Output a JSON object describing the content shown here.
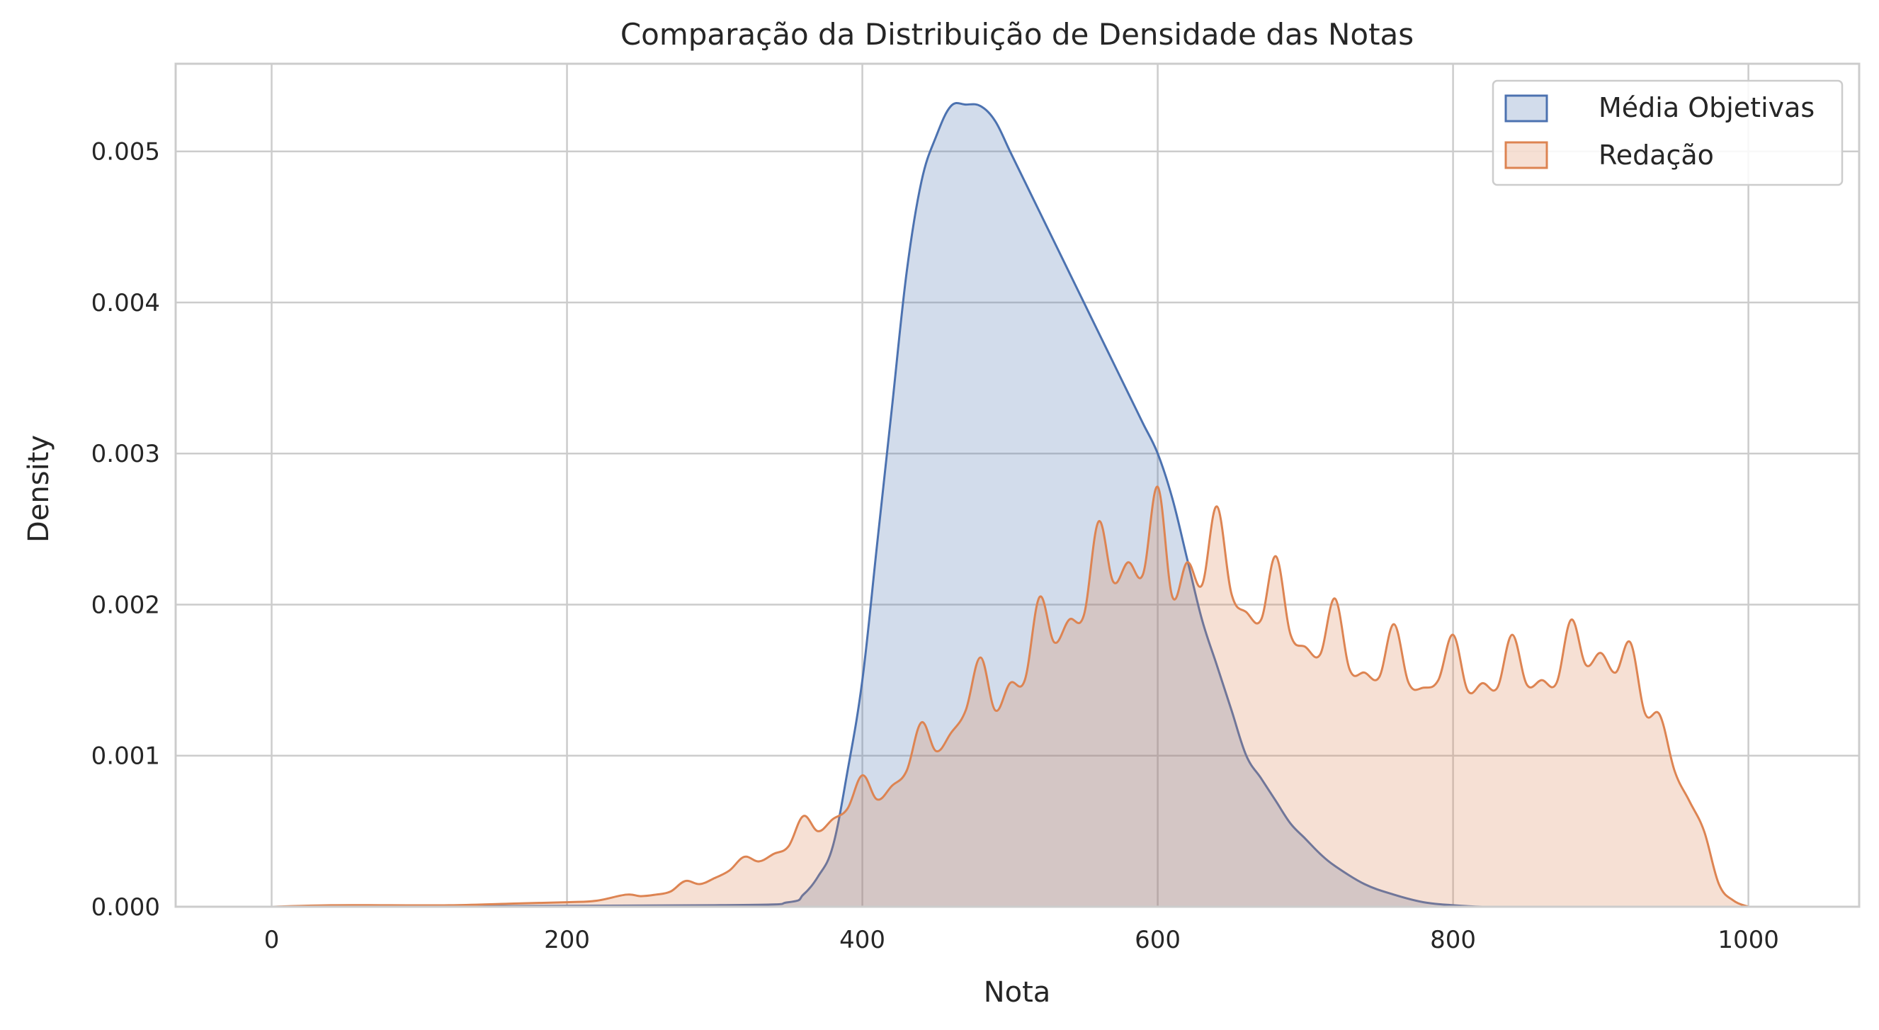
{
  "chart_data": {
    "type": "area",
    "title": "Comparação da Distribuição de Densidade das Notas",
    "xlabel": "Nota",
    "ylabel": "Density",
    "xlim": [
      -65,
      1075
    ],
    "ylim": [
      0,
      0.00558
    ],
    "x_ticks": [
      0,
      200,
      400,
      600,
      800,
      1000
    ],
    "x_tick_labels": [
      "0",
      "200",
      "400",
      "600",
      "800",
      "1000"
    ],
    "y_ticks": [
      0,
      0.001,
      0.002,
      0.003,
      0.004,
      0.005
    ],
    "y_tick_labels": [
      "0.000",
      "0.001",
      "0.002",
      "0.003",
      "0.004",
      "0.005"
    ],
    "grid": true,
    "legend_position": "top-right",
    "series": [
      {
        "name": "Média Objetivas",
        "color": "#4c72b0",
        "x": [
          0,
          300,
          350,
          360,
          370,
          380,
          390,
          400,
          410,
          420,
          430,
          440,
          450,
          460,
          470,
          480,
          490,
          500,
          510,
          520,
          530,
          540,
          550,
          560,
          570,
          580,
          590,
          600,
          610,
          620,
          630,
          640,
          650,
          660,
          670,
          680,
          690,
          700,
          710,
          720,
          740,
          760,
          780,
          800,
          820,
          850,
          900,
          1000
        ],
        "y": [
          0,
          1e-05,
          3e-05,
          8e-05,
          0.0002,
          0.0004,
          0.0009,
          0.0015,
          0.0024,
          0.0033,
          0.0042,
          0.0048,
          0.0051,
          0.0053,
          0.00531,
          0.0053,
          0.0052,
          0.005,
          0.0048,
          0.0046,
          0.0044,
          0.0042,
          0.004,
          0.0038,
          0.0036,
          0.0034,
          0.0032,
          0.003,
          0.0027,
          0.0023,
          0.0019,
          0.0016,
          0.0013,
          0.001,
          0.00085,
          0.0007,
          0.00055,
          0.00045,
          0.00035,
          0.00027,
          0.00015,
          8e-05,
          3e-05,
          1e-05,
          0,
          0,
          0,
          0
        ]
      },
      {
        "name": "Redação",
        "color": "#dd8452",
        "x": [
          0,
          40,
          80,
          120,
          160,
          200,
          220,
          240,
          250,
          260,
          270,
          280,
          290,
          300,
          310,
          320,
          330,
          340,
          350,
          360,
          370,
          380,
          390,
          400,
          410,
          420,
          430,
          440,
          450,
          460,
          470,
          480,
          490,
          500,
          510,
          520,
          530,
          540,
          550,
          560,
          570,
          580,
          590,
          600,
          610,
          620,
          630,
          640,
          650,
          660,
          670,
          680,
          690,
          700,
          710,
          720,
          730,
          740,
          750,
          760,
          770,
          780,
          790,
          800,
          810,
          820,
          830,
          840,
          850,
          860,
          870,
          880,
          890,
          900,
          910,
          920,
          930,
          940,
          950,
          960,
          970,
          980,
          990,
          1000
        ],
        "y": [
          0,
          1e-05,
          1e-05,
          1e-05,
          2e-05,
          3e-05,
          4e-05,
          8e-05,
          7e-05,
          8e-05,
          0.0001,
          0.00017,
          0.00015,
          0.00019,
          0.00024,
          0.00033,
          0.0003,
          0.00035,
          0.0004,
          0.0006,
          0.0005,
          0.00058,
          0.00065,
          0.00087,
          0.00071,
          0.0008,
          0.0009,
          0.00122,
          0.00103,
          0.00115,
          0.0013,
          0.00165,
          0.0013,
          0.00148,
          0.0015,
          0.00205,
          0.00175,
          0.0019,
          0.00193,
          0.00255,
          0.00215,
          0.00228,
          0.0022,
          0.00278,
          0.00205,
          0.00228,
          0.00213,
          0.00265,
          0.00207,
          0.00195,
          0.0019,
          0.00232,
          0.0018,
          0.00172,
          0.00167,
          0.00204,
          0.00157,
          0.00155,
          0.00152,
          0.00187,
          0.00148,
          0.00145,
          0.0015,
          0.0018,
          0.00143,
          0.00148,
          0.00145,
          0.0018,
          0.00147,
          0.0015,
          0.00148,
          0.0019,
          0.0016,
          0.00168,
          0.00155,
          0.00175,
          0.00128,
          0.00127,
          0.0009,
          0.0007,
          0.0005,
          0.00015,
          4e-05,
          0
        ]
      }
    ]
  }
}
